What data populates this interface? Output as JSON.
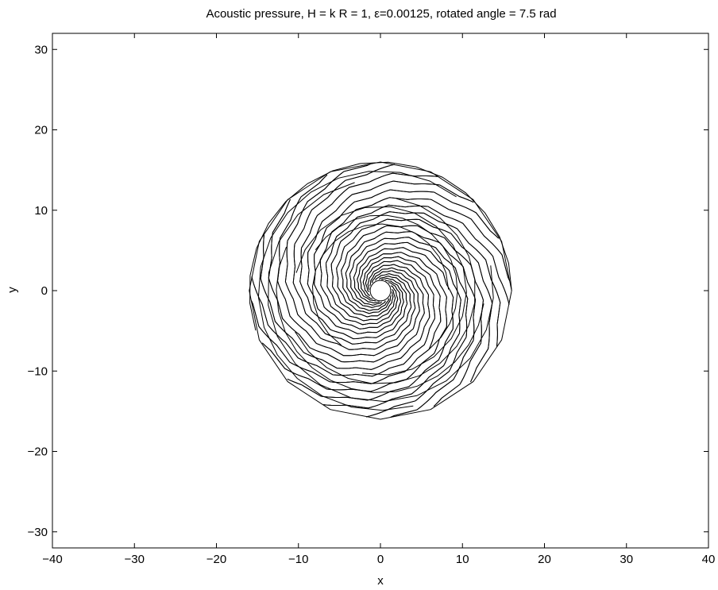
{
  "chart_data": {
    "type": "contour",
    "title": "Acoustic pressure, H = k R = 1, ε=0.00125, rotated angle = 7.5 rad",
    "xlabel": "x",
    "ylabel": "y",
    "xlim": [
      -40,
      40
    ],
    "ylim": [
      -32,
      32
    ],
    "x_ticks": [
      -40,
      -30,
      -20,
      -10,
      0,
      10,
      20,
      30,
      40
    ],
    "y_ticks": [
      -30,
      -20,
      -10,
      0,
      10,
      20,
      30
    ],
    "x_tick_labels": [
      "−40",
      "−30",
      "−20",
      "−10",
      "0",
      "10",
      "20",
      "30",
      "40"
    ],
    "y_tick_labels": [
      "−30",
      "−20",
      "−10",
      "0",
      "10",
      "20",
      "30"
    ],
    "grid": false,
    "line_color": "#000000",
    "domain_outer_radius": 16,
    "scatterer_radius": 1,
    "spiral_arms": 2,
    "contour_levels": 40
  }
}
